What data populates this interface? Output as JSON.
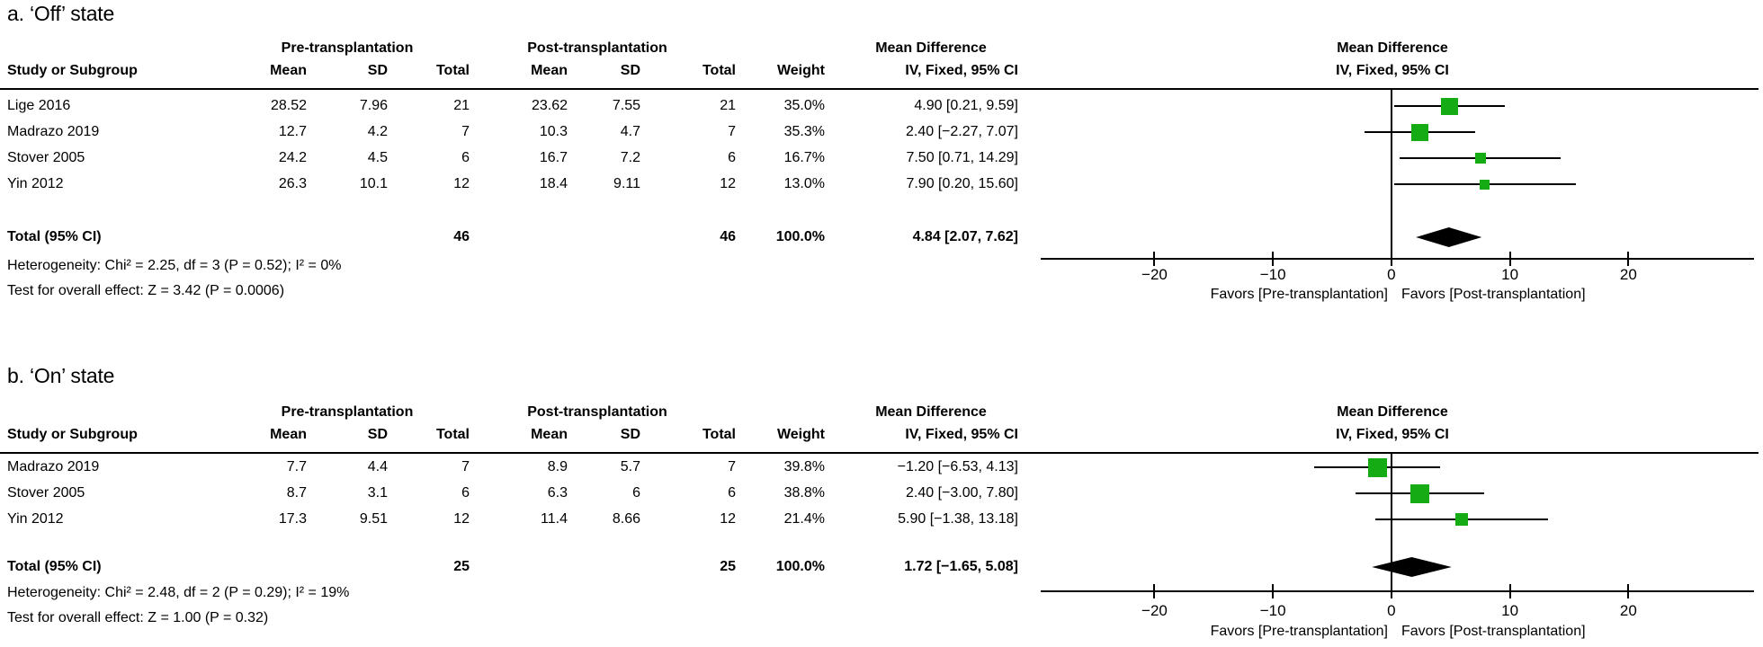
{
  "colors": {
    "square_green": "#15AB15",
    "diamond_black": "#000000",
    "line_black": "#000000"
  },
  "panels": [
    {
      "title": "a. ‘Off’ state",
      "table": {
        "group_headers": {
          "pre": "Pre-transplantation",
          "post": "Post-transplantation",
          "md_left": "Mean Difference",
          "md_right": "Mean Difference"
        },
        "col_headers": {
          "study": "Study or Subgroup",
          "mean1": "Mean",
          "sd1": "SD",
          "total1": "Total",
          "mean2": "Mean",
          "sd2": "SD",
          "total2": "Total",
          "weight": "Weight",
          "ci": "IV, Fixed, 95% CI",
          "ci_right": "IV, Fixed, 95% CI"
        },
        "rows": [
          {
            "study": "Lige 2016",
            "mean1": "28.52",
            "sd1": "7.96",
            "total1": "21",
            "mean2": "23.62",
            "sd2": "7.55",
            "total2": "21",
            "weight": "35.0%",
            "ci": "4.90 [0.21, 9.59]"
          },
          {
            "study": "Madrazo 2019",
            "mean1": "12.7",
            "sd1": "4.2",
            "total1": "7",
            "mean2": "10.3",
            "sd2": "4.7",
            "total2": "7",
            "weight": "35.3%",
            "ci": "2.40 [−2.27, 7.07]"
          },
          {
            "study": "Stover 2005",
            "mean1": "24.2",
            "sd1": "4.5",
            "total1": "6",
            "mean2": "16.7",
            "sd2": "7.2",
            "total2": "6",
            "weight": "16.7%",
            "ci": "7.50 [0.71, 14.29]"
          },
          {
            "study": "Yin 2012",
            "mean1": "26.3",
            "sd1": "10.1",
            "total1": "12",
            "mean2": "18.4",
            "sd2": "9.11",
            "total2": "12",
            "weight": "13.0%",
            "ci": "7.90 [0.20, 15.60]"
          }
        ],
        "total_row": {
          "label": "Total (95% CI)",
          "total1": "46",
          "total2": "46",
          "weight": "100.0%",
          "ci": "4.84 [2.07, 7.62]"
        },
        "heterogeneity": "Heterogeneity: Chi² = 2.25, df = 3 (P = 0.52); I² = 0%",
        "overall_effect": "Test for overall effect: Z = 3.42 (P = 0.0006)"
      }
    },
    {
      "title": "b. ‘On’ state",
      "table": {
        "group_headers": {
          "pre": "Pre-transplantation",
          "post": "Post-transplantation",
          "md_left": "Mean Difference",
          "md_right": "Mean Difference"
        },
        "col_headers": {
          "study": "Study or Subgroup",
          "mean1": "Mean",
          "sd1": "SD",
          "total1": "Total",
          "mean2": "Mean",
          "sd2": "SD",
          "total2": "Total",
          "weight": "Weight",
          "ci": "IV, Fixed, 95% CI",
          "ci_right": "IV, Fixed, 95% CI"
        },
        "rows": [
          {
            "study": "Madrazo 2019",
            "mean1": "7.7",
            "sd1": "4.4",
            "total1": "7",
            "mean2": "8.9",
            "sd2": "5.7",
            "total2": "7",
            "weight": "39.8%",
            "ci": "−1.20 [−6.53, 4.13]"
          },
          {
            "study": "Stover 2005",
            "mean1": "8.7",
            "sd1": "3.1",
            "total1": "6",
            "mean2": "6.3",
            "sd2": "6",
            "total2": "6",
            "weight": "38.8%",
            "ci": "2.40 [−3.00, 7.80]"
          },
          {
            "study": "Yin 2012",
            "mean1": "17.3",
            "sd1": "9.51",
            "total1": "12",
            "mean2": "11.4",
            "sd2": "8.66",
            "total2": "12",
            "weight": "21.4%",
            "ci": "5.90 [−1.38, 13.18]"
          }
        ],
        "total_row": {
          "label": "Total (95% CI)",
          "total1": "25",
          "total2": "25",
          "weight": "100.0%",
          "ci": "1.72 [−1.65, 5.08]"
        },
        "heterogeneity": "Heterogeneity: Chi² = 2.48, df = 2 (P = 0.29); I² = 19%",
        "overall_effect": "Test for overall effect: Z = 1.00 (P = 0.32)"
      }
    }
  ],
  "chart_data": [
    {
      "type": "forest",
      "title": "a. ‘Off’ state",
      "effect_measure": "Mean Difference, IV, Fixed, 95% CI",
      "studies": [
        {
          "name": "Lige 2016",
          "pre": {
            "mean": 28.52,
            "sd": 7.96,
            "total": 21
          },
          "post": {
            "mean": 23.62,
            "sd": 7.55,
            "total": 21
          },
          "weight_pct": 35.0,
          "md": 4.9,
          "ci": [
            0.21,
            9.59
          ]
        },
        {
          "name": "Madrazo 2019",
          "pre": {
            "mean": 12.7,
            "sd": 4.2,
            "total": 7
          },
          "post": {
            "mean": 10.3,
            "sd": 4.7,
            "total": 7
          },
          "weight_pct": 35.3,
          "md": 2.4,
          "ci": [
            -2.27,
            7.07
          ]
        },
        {
          "name": "Stover 2005",
          "pre": {
            "mean": 24.2,
            "sd": 4.5,
            "total": 6
          },
          "post": {
            "mean": 16.7,
            "sd": 7.2,
            "total": 6
          },
          "weight_pct": 16.7,
          "md": 7.5,
          "ci": [
            0.71,
            14.29
          ]
        },
        {
          "name": "Yin 2012",
          "pre": {
            "mean": 26.3,
            "sd": 10.1,
            "total": 12
          },
          "post": {
            "mean": 18.4,
            "sd": 9.11,
            "total": 12
          },
          "weight_pct": 13.0,
          "md": 7.9,
          "ci": [
            0.2,
            15.6
          ]
        }
      ],
      "total": {
        "n_pre": 46,
        "n_post": 46,
        "weight_pct": 100.0,
        "md": 4.84,
        "ci": [
          2.07,
          7.62
        ]
      },
      "heterogeneity": {
        "chi2": 2.25,
        "df": 3,
        "p": 0.52,
        "i2_pct": 0
      },
      "overall_effect": {
        "z": 3.42,
        "p": 0.0006
      },
      "axis": {
        "ticks": [
          -20,
          -10,
          0,
          10,
          20
        ],
        "tick_labels": [
          "−20",
          "−10",
          "0",
          "10",
          "20"
        ],
        "range": [
          -29.6,
          30.6
        ]
      },
      "favors_left": "Favors [Pre-transplantation]",
      "favors_right": "Favors [Post-transplantation]"
    },
    {
      "type": "forest",
      "title": "b. ‘On’ state",
      "effect_measure": "Mean Difference, IV, Fixed, 95% CI",
      "studies": [
        {
          "name": "Madrazo 2019",
          "pre": {
            "mean": 7.7,
            "sd": 4.4,
            "total": 7
          },
          "post": {
            "mean": 8.9,
            "sd": 5.7,
            "total": 7
          },
          "weight_pct": 39.8,
          "md": -1.2,
          "ci": [
            -6.53,
            4.13
          ]
        },
        {
          "name": "Stover 2005",
          "pre": {
            "mean": 8.7,
            "sd": 3.1,
            "total": 6
          },
          "post": {
            "mean": 6.3,
            "sd": 6,
            "total": 6
          },
          "weight_pct": 38.8,
          "md": 2.4,
          "ci": [
            -3.0,
            7.8
          ]
        },
        {
          "name": "Yin 2012",
          "pre": {
            "mean": 17.3,
            "sd": 9.51,
            "total": 12
          },
          "post": {
            "mean": 11.4,
            "sd": 8.66,
            "total": 12
          },
          "weight_pct": 21.4,
          "md": 5.9,
          "ci": [
            -1.38,
            13.18
          ]
        }
      ],
      "total": {
        "n_pre": 25,
        "n_post": 25,
        "weight_pct": 100.0,
        "md": 1.72,
        "ci": [
          -1.65,
          5.08
        ]
      },
      "heterogeneity": {
        "chi2": 2.48,
        "df": 2,
        "p": 0.29,
        "i2_pct": 19
      },
      "overall_effect": {
        "z": 1.0,
        "p": 0.32
      },
      "axis": {
        "ticks": [
          -20,
          -10,
          0,
          10,
          20
        ],
        "tick_labels": [
          "−20",
          "−10",
          "0",
          "10",
          "20"
        ],
        "range": [
          -29.6,
          30.6
        ]
      },
      "favors_left": "Favors [Pre-transplantation]",
      "favors_right": "Favors [Post-transplantation]"
    }
  ]
}
